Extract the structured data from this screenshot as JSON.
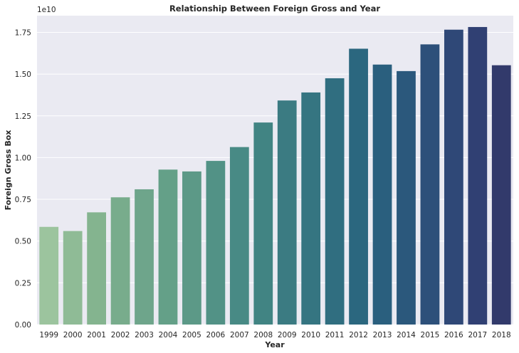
{
  "chart_data": {
    "type": "bar",
    "title": "Relationship Between Foreign Gross and Year",
    "xlabel": "Year",
    "ylabel": "Foreign Gross Box",
    "y_offset_label": "1e10",
    "y_scale": 10000000000,
    "ylim": [
      0,
      1.85
    ],
    "yticks": [
      0.0,
      0.25,
      0.5,
      0.75,
      1.0,
      1.25,
      1.5,
      1.75
    ],
    "ytick_labels": [
      "0.00",
      "0.25",
      "0.50",
      "0.75",
      "1.00",
      "1.25",
      "1.50",
      "1.75"
    ],
    "grid": true,
    "categories": [
      "1999",
      "2000",
      "2001",
      "2002",
      "2003",
      "2004",
      "2005",
      "2006",
      "2007",
      "2008",
      "2009",
      "2010",
      "2011",
      "2012",
      "2013",
      "2014",
      "2015",
      "2016",
      "2017",
      "2018"
    ],
    "values": [
      0.585,
      0.56,
      0.672,
      0.762,
      0.81,
      0.928,
      0.917,
      0.98,
      1.063,
      1.21,
      1.342,
      1.39,
      1.475,
      1.652,
      1.557,
      1.518,
      1.678,
      1.766,
      1.782,
      1.553
    ],
    "colors": [
      "#9cc49e",
      "#8fbb96",
      "#84b48f",
      "#78ac8c",
      "#6ea58b",
      "#64a088",
      "#5c9987",
      "#529286",
      "#488a85",
      "#418483",
      "#3b7b82",
      "#357581",
      "#306e80",
      "#2b677f",
      "#2a5f7e",
      "#2b587c",
      "#2d507a",
      "#2f4877",
      "#304073",
      "#323a6b"
    ]
  }
}
